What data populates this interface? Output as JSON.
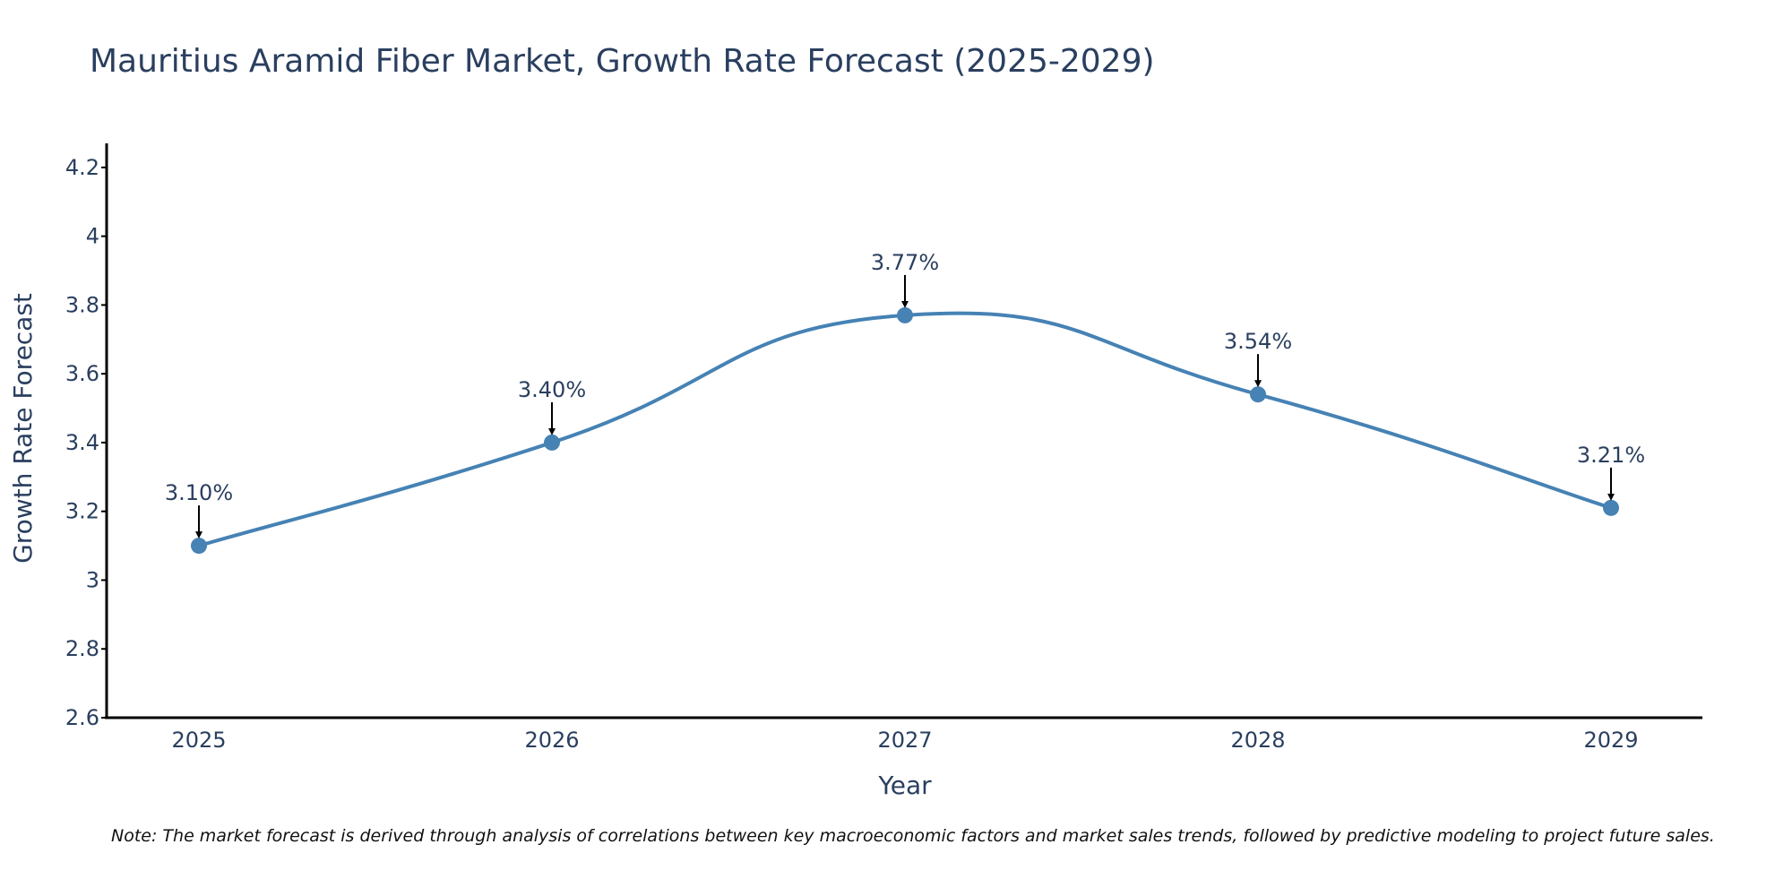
{
  "chart_data": {
    "type": "line",
    "title": "Mauritius Aramid Fiber Market, Growth Rate Forecast (2025-2029)",
    "xlabel": "Year",
    "ylabel": "Growth Rate Forecast",
    "categories": [
      "2025",
      "2026",
      "2027",
      "2028",
      "2029"
    ],
    "series": [
      {
        "name": "Growth Rate Forecast",
        "values": [
          3.1,
          3.4,
          3.77,
          3.54,
          3.21
        ],
        "labels": [
          "3.10%",
          "3.40%",
          "3.77%",
          "3.54%",
          "3.21%"
        ],
        "color": "#4682b4"
      }
    ],
    "ylim": [
      2.6,
      4.27
    ],
    "yticks": [
      2.6,
      2.8,
      3,
      3.2,
      3.4,
      3.6,
      3.8,
      4,
      4.2
    ],
    "ytick_labels": [
      "2.6",
      "2.8",
      "3",
      "3.2",
      "3.4",
      "3.6",
      "3.8",
      "4",
      "4.2"
    ],
    "grid": false,
    "legend": "none",
    "note": "Note: The market forecast is derived through analysis of correlations between key macroeconomic factors and market sales trends, followed by predictive modeling to project future sales."
  },
  "colors": {
    "line": "#4682b4",
    "text": "#2a3f5f",
    "axis": "#000000"
  }
}
